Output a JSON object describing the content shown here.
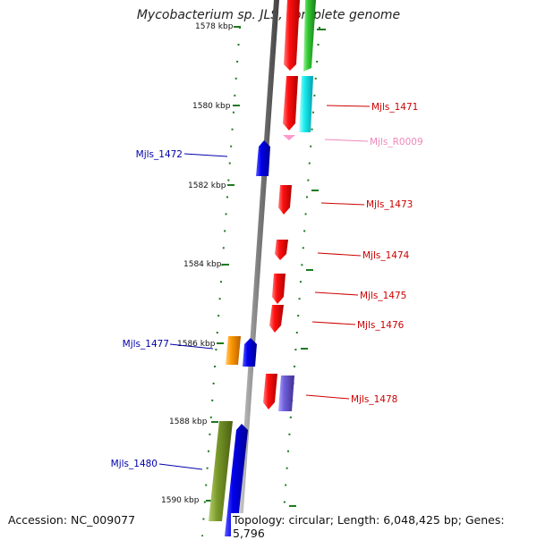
{
  "title": "Mycobacterium sp. JLS, complete genome",
  "footer": {
    "accession": "Accession: NC_009077",
    "summary": "Topology: circular; Length: 6,048,425 bp; Genes: 5,796"
  },
  "colors": {
    "backbone": "#8c8c8c",
    "tick": "#1f7a1f",
    "label_right": "#cc0000",
    "label_left": "#0000aa",
    "label_rna": "#ee88bb"
  },
  "ticks": [
    {
      "label": "1578 kbp"
    },
    {
      "label": "1580 kbp"
    },
    {
      "label": "1582 kbp"
    },
    {
      "label": "1584 kbp"
    },
    {
      "label": "1586 kbp"
    },
    {
      "label": "1588 kbp"
    },
    {
      "label": "1590 kbp"
    }
  ],
  "gene_labels": [
    {
      "id": "Mjls_1471"
    },
    {
      "id": "Mjls_R0009"
    },
    {
      "id": "Mjls_1472"
    },
    {
      "id": "Mjls_1473"
    },
    {
      "id": "Mjls_1474"
    },
    {
      "id": "Mjls_1475"
    },
    {
      "id": "Mjls_1476"
    },
    {
      "id": "Mjls_1477"
    },
    {
      "id": "Mjls_1478"
    },
    {
      "id": "Mjls_1480"
    }
  ]
}
